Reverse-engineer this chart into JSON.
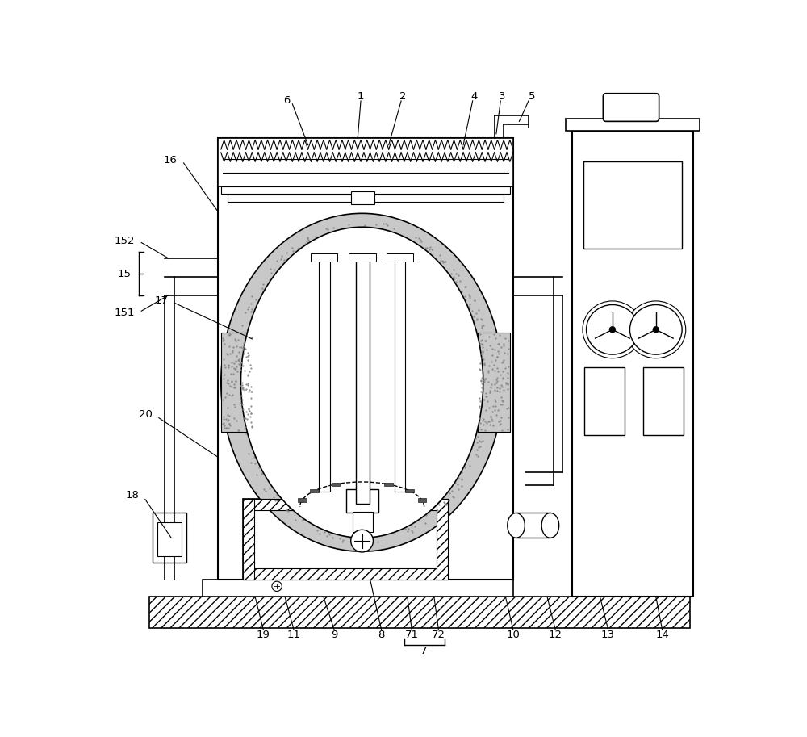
{
  "bg_color": "#ffffff",
  "lc": "#000000",
  "insulation_fill": "#cccccc",
  "dotted_fill": "#d8d8d8",
  "hatch_fill": "#e8e8e8",
  "fig_width": 10.0,
  "fig_height": 9.13,
  "dpi": 100
}
